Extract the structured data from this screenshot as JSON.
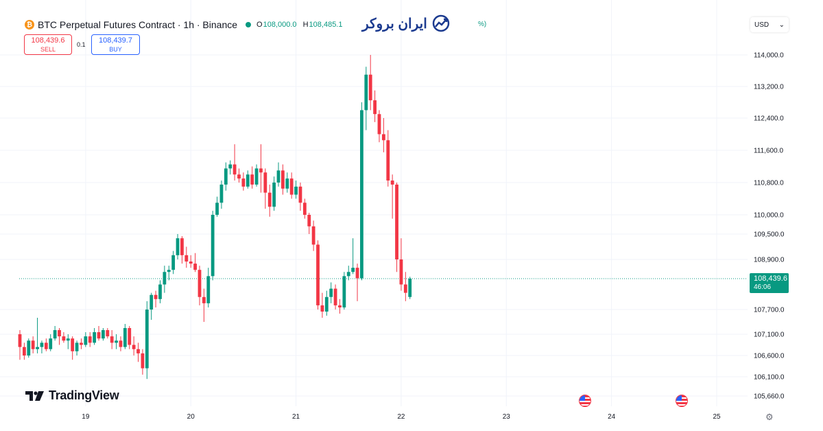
{
  "header": {
    "coin_glyph": "₿",
    "title": "BTC Perpetual Futures Contract · 1h · Binance",
    "ohlc": [
      {
        "label": "O",
        "value": "108,000.0"
      },
      {
        "label": "H",
        "value": "108,485.1"
      }
    ],
    "change_tail": "%)"
  },
  "trade": {
    "sell_price": "108,439.6",
    "sell_label": "SELL",
    "quantity": "0.1",
    "buy_price": "108,439.7",
    "buy_label": "BUY"
  },
  "brand": {
    "text": "ایران بروکر",
    "icon": "trend-chart-icon"
  },
  "currency": {
    "value": "USD",
    "icon": "chevron-down-icon"
  },
  "watermark": {
    "text": "TradingView",
    "icon": "tradingview-logo-icon"
  },
  "colors": {
    "up": "#089981",
    "down": "#f23645",
    "grid": "#f0f3fa",
    "axis_text": "#131722",
    "brand": "#1b3a8f"
  },
  "chart_data": {
    "type": "candlestick",
    "symbol": "BTC Perpetual Futures Contract",
    "interval": "1h",
    "exchange": "Binance",
    "y_ticks": [
      105660,
      106100,
      106600,
      107100,
      107700,
      108900,
      109500,
      110000,
      110800,
      111600,
      112400,
      113200,
      114000
    ],
    "y_tick_labels": [
      "105,660.0",
      "106,100.0",
      "106,600.0",
      "107,100.0",
      "107,700.0",
      "108,900.0",
      "109,500.0",
      "110,000.0",
      "110,800.0",
      "111,600.0",
      "112,400.0",
      "113,200.0",
      "114,000.0"
    ],
    "x_ticks": [
      {
        "label": "19",
        "bar": 15
      },
      {
        "label": "20",
        "bar": 39
      },
      {
        "label": "21",
        "bar": 63
      },
      {
        "label": "22",
        "bar": 87
      },
      {
        "label": "23",
        "bar": 111
      },
      {
        "label": "24",
        "bar": 135
      },
      {
        "label": "25",
        "bar": 159
      }
    ],
    "last_price": 108439.6,
    "last_price_label": "108,439.6",
    "countdown": "46:06",
    "event_markers": [
      {
        "bar": 129,
        "icon": "us-flag-icon"
      },
      {
        "bar": 151,
        "icon": "us-flag-icon"
      }
    ],
    "candles": [
      [
        107100,
        107200,
        106500,
        106800
      ],
      [
        106800,
        106900,
        106500,
        106600
      ],
      [
        106600,
        107000,
        106550,
        106950
      ],
      [
        106950,
        107050,
        106650,
        106750
      ],
      [
        106750,
        107500,
        106650,
        106800
      ],
      [
        106800,
        106950,
        106650,
        106900
      ],
      [
        106900,
        107000,
        106700,
        106750
      ],
      [
        106750,
        107100,
        106700,
        107000
      ],
      [
        107000,
        107300,
        106950,
        107200
      ],
      [
        107200,
        107250,
        106850,
        107050
      ],
      [
        107050,
        107150,
        106900,
        106950
      ],
      [
        106950,
        107100,
        106750,
        107000
      ],
      [
        107000,
        107050,
        106500,
        106700
      ],
      [
        106700,
        106950,
        106600,
        106900
      ],
      [
        106900,
        107000,
        106750,
        106850
      ],
      [
        106850,
        107150,
        106800,
        107050
      ],
      [
        107050,
        107150,
        106800,
        106900
      ],
      [
        106900,
        107250,
        106850,
        107150
      ],
      [
        107150,
        107300,
        106950,
        107000
      ],
      [
        107000,
        107250,
        106950,
        107200
      ],
      [
        107200,
        107250,
        107000,
        107050
      ],
      [
        107050,
        107200,
        106750,
        106900
      ],
      [
        106900,
        107100,
        106750,
        106950
      ],
      [
        106950,
        107050,
        106700,
        106800
      ],
      [
        106800,
        107350,
        106750,
        107250
      ],
      [
        107250,
        107300,
        106750,
        106850
      ],
      [
        106850,
        107050,
        106600,
        106750
      ],
      [
        106750,
        106900,
        106450,
        106650
      ],
      [
        106650,
        106750,
        106150,
        106300
      ],
      [
        106300,
        107900,
        106050,
        107700
      ],
      [
        107700,
        108100,
        107450,
        108050
      ],
      [
        108050,
        108150,
        107750,
        107950
      ],
      [
        107950,
        108400,
        107850,
        108300
      ],
      [
        108300,
        108750,
        108100,
        108600
      ],
      [
        108600,
        108750,
        108400,
        108650
      ],
      [
        108650,
        109100,
        108550,
        109000
      ],
      [
        109000,
        109500,
        108900,
        109400
      ],
      [
        109400,
        109450,
        108800,
        109000
      ],
      [
        109000,
        109200,
        108700,
        108850
      ],
      [
        108850,
        109000,
        108700,
        108800
      ],
      [
        108800,
        109050,
        108600,
        108650
      ],
      [
        108650,
        108750,
        107800,
        108000
      ],
      [
        108000,
        108200,
        107400,
        107850
      ],
      [
        107850,
        108700,
        107750,
        108500
      ],
      [
        108500,
        110100,
        108400,
        110000
      ],
      [
        110000,
        110450,
        109950,
        110300
      ],
      [
        110300,
        110850,
        110150,
        110750
      ],
      [
        110750,
        111300,
        110600,
        111150
      ],
      [
        111150,
        111350,
        111000,
        111250
      ],
      [
        111250,
        111750,
        110850,
        111000
      ],
      [
        111000,
        111150,
        110800,
        110900
      ],
      [
        110900,
        111050,
        110600,
        110700
      ],
      [
        110700,
        111100,
        110650,
        111000
      ],
      [
        111000,
        111200,
        110650,
        110750
      ],
      [
        110750,
        111250,
        110700,
        111150
      ],
      [
        111150,
        111750,
        110550,
        111050
      ],
      [
        111050,
        111150,
        110150,
        110550
      ],
      [
        110550,
        110750,
        109950,
        110200
      ],
      [
        110200,
        110950,
        110100,
        110800
      ],
      [
        110800,
        111300,
        110700,
        111100
      ],
      [
        111100,
        111250,
        110500,
        110650
      ],
      [
        110650,
        111050,
        110550,
        110900
      ],
      [
        110900,
        111050,
        110400,
        110500
      ],
      [
        110500,
        110850,
        110400,
        110700
      ],
      [
        110700,
        110800,
        110100,
        110300
      ],
      [
        110300,
        110400,
        109900,
        110000
      ],
      [
        110000,
        110050,
        109500,
        109700
      ],
      [
        109700,
        109850,
        109100,
        109250
      ],
      [
        109250,
        109350,
        107700,
        107800
      ],
      [
        107800,
        108100,
        107500,
        107650
      ],
      [
        107650,
        108150,
        107550,
        108000
      ],
      [
        108000,
        108350,
        107850,
        108200
      ],
      [
        108200,
        108300,
        107700,
        107800
      ],
      [
        107800,
        107950,
        107600,
        107750
      ],
      [
        107750,
        108600,
        107700,
        108500
      ],
      [
        108500,
        108750,
        108400,
        108600
      ],
      [
        108600,
        109400,
        108550,
        108700
      ],
      [
        108700,
        108800,
        107900,
        108450
      ],
      [
        108450,
        112800,
        108400,
        112600
      ],
      [
        112600,
        113700,
        112100,
        113500
      ],
      [
        113500,
        114000,
        112600,
        112850
      ],
      [
        112850,
        113100,
        112300,
        112500
      ],
      [
        112500,
        112600,
        111800,
        112000
      ],
      [
        112000,
        112400,
        111550,
        111850
      ],
      [
        111850,
        112100,
        110700,
        110850
      ],
      [
        110850,
        111000,
        109900,
        110750
      ],
      [
        110750,
        110800,
        108600,
        108900
      ],
      [
        108900,
        109400,
        108150,
        108300
      ],
      [
        108300,
        108600,
        107900,
        108100
      ],
      [
        108000,
        108485,
        107950,
        108440
      ]
    ]
  }
}
